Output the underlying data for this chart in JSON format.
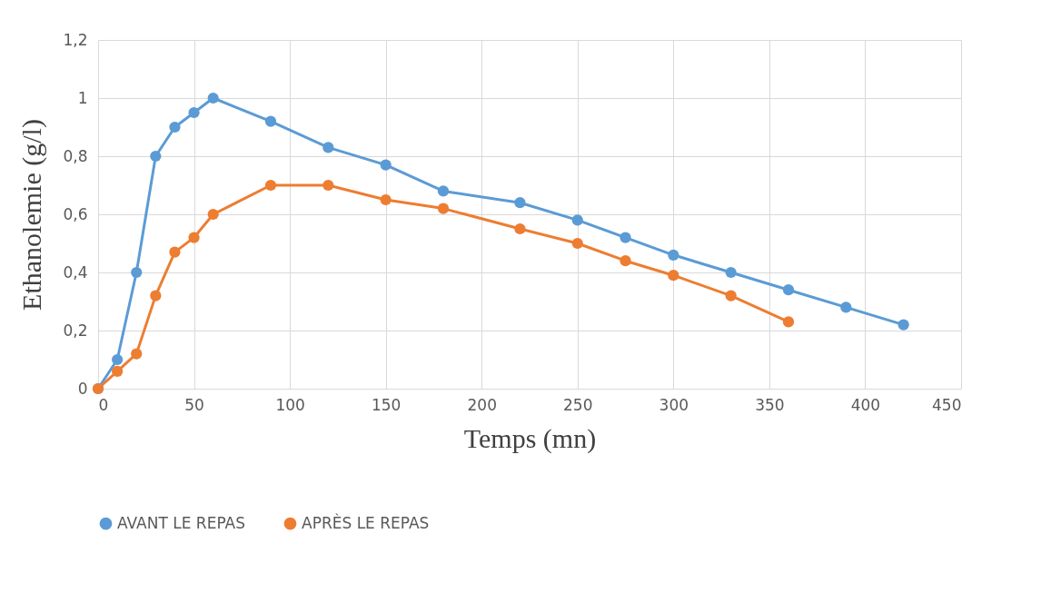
{
  "chart_data": {
    "type": "line",
    "xlabel": "Temps (mn)",
    "ylabel": "Ethanolemie (g/l)",
    "series": [
      {
        "name": "AVANT LE REPAS",
        "color": "#5b9bd5",
        "x": [
          0,
          10,
          20,
          30,
          40,
          50,
          60,
          90,
          120,
          150,
          180,
          220,
          250,
          275,
          300,
          330,
          360,
          390,
          420
        ],
        "values": [
          0,
          0.1,
          0.4,
          0.8,
          0.9,
          0.95,
          1.0,
          0.92,
          0.83,
          0.77,
          0.68,
          0.64,
          0.58,
          0.52,
          0.46,
          0.4,
          0.34,
          0.28,
          0.22
        ]
      },
      {
        "name": "APRÈS LE REPAS",
        "color": "#ed7d31",
        "x": [
          0,
          10,
          20,
          30,
          40,
          50,
          60,
          90,
          120,
          150,
          180,
          220,
          250,
          275,
          300,
          330,
          360
        ],
        "values": [
          0,
          0.06,
          0.12,
          0.32,
          0.47,
          0.52,
          0.6,
          0.7,
          0.7,
          0.65,
          0.62,
          0.55,
          0.5,
          0.44,
          0.39,
          0.32,
          0.23
        ]
      }
    ],
    "xlim": [
      0,
      450
    ],
    "xticks": [
      0,
      50,
      100,
      150,
      200,
      250,
      300,
      350,
      400,
      450
    ],
    "ylim": [
      0,
      1.2
    ],
    "yticks": [
      0,
      {
        "value": 0.2,
        "label": "0,2"
      },
      {
        "value": 0.4,
        "label": "0,4"
      },
      {
        "value": 0.6,
        "label": "0,6"
      },
      {
        "value": 0.8,
        "label": "0,8"
      },
      1,
      {
        "value": 1.2,
        "label": "1,2"
      }
    ],
    "grid": true,
    "legend": "bottom",
    "marker": "circle",
    "line_style": "solid"
  }
}
